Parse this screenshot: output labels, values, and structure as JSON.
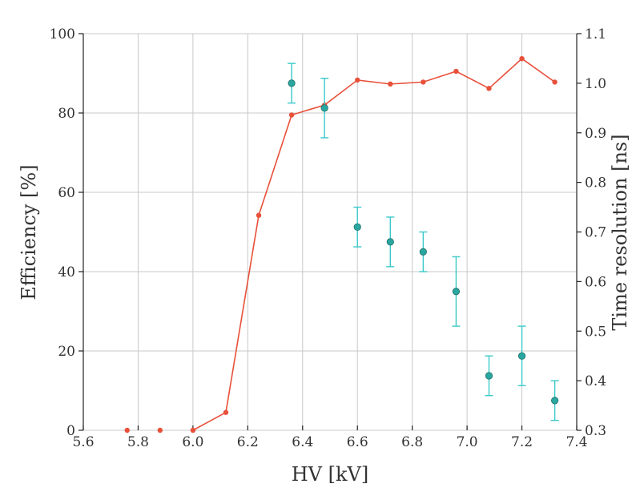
{
  "chart_data": {
    "type": "line",
    "xlabel": "HV [kV]",
    "ylabel": "Efficiency [%]",
    "y2label": "Time resolution [ns]",
    "xlim": [
      5.6,
      7.4
    ],
    "ylim": [
      0,
      100
    ],
    "y2lim": [
      0.3,
      1.1
    ],
    "x_ticks": [
      "5.6",
      "5.8",
      "6.0",
      "6.2",
      "6.4",
      "6.6",
      "6.8",
      "7.0",
      "7.2",
      "7.4"
    ],
    "y_ticks": [
      "0",
      "20",
      "40",
      "60",
      "80",
      "100"
    ],
    "y2_ticks": [
      "0.3",
      "0.4",
      "0.5",
      "0.6",
      "0.7",
      "0.8",
      "0.9",
      "1.0",
      "1.1"
    ],
    "grid": true,
    "colors": {
      "efficiency": "#e8503a",
      "time_resolution": "#2aa7a0",
      "error_bar": "#3cc9c9"
    },
    "series": [
      {
        "axis": "left",
        "kind": "line",
        "x": [
          5.76,
          5.88,
          6.0,
          6.12,
          6.24,
          6.36,
          6.48,
          6.6,
          6.72,
          6.84,
          6.96,
          7.08,
          7.2,
          7.32
        ],
        "y": [
          0,
          0,
          0,
          4.5,
          54.2,
          79.5,
          82,
          88.3,
          87.3,
          87.8,
          90.5,
          86.2,
          93.7,
          87.8
        ]
      },
      {
        "axis": "right",
        "kind": "errorbar",
        "x": [
          6.36,
          6.48,
          6.6,
          6.72,
          6.84,
          6.96,
          7.08,
          7.2,
          7.32
        ],
        "y": [
          1.0,
          0.95,
          0.71,
          0.68,
          0.66,
          0.58,
          0.41,
          0.45,
          0.36
        ],
        "err": [
          0.04,
          0.06,
          0.04,
          0.05,
          0.04,
          0.07,
          0.04,
          0.06,
          0.04
        ]
      }
    ]
  }
}
